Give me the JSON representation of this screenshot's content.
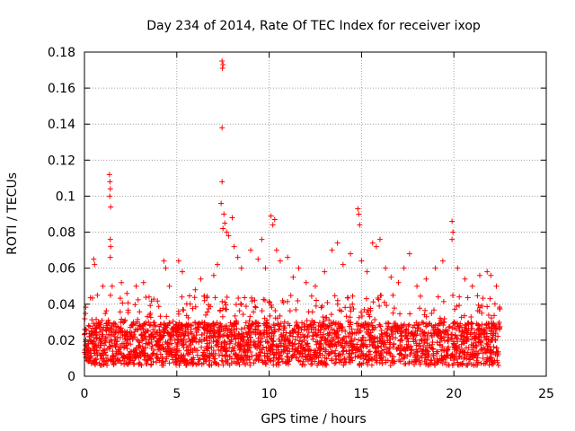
{
  "chart_data": {
    "type": "scatter",
    "title": "Day 234 of 2014, Rate Of TEC Index for receiver ixop",
    "xlabel": "GPS time / hours",
    "ylabel": "ROTI / TECUs",
    "xlim": [
      0,
      25
    ],
    "ylim": [
      0,
      0.18
    ],
    "xticks": [
      0,
      5,
      10,
      15,
      20,
      25
    ],
    "yticks": [
      0,
      0.02,
      0.04,
      0.06,
      0.08,
      0.1,
      0.12,
      0.14,
      0.16,
      0.18
    ],
    "xtick_labels": [
      "0",
      "5",
      "10",
      "15",
      "20",
      "25"
    ],
    "ytick_labels": [
      "0",
      "0.02",
      "0.04",
      "0.06",
      "0.08",
      "0.1",
      "0.12",
      "0.14",
      "0.16",
      "0.18"
    ],
    "grid": true,
    "marker": "+",
    "color": "#ff0000",
    "series": [
      {
        "name": "ROTI",
        "points": [
          [
            0.5,
            0.065
          ],
          [
            0.55,
            0.062
          ],
          [
            0.7,
            0.045
          ],
          [
            1.0,
            0.05
          ],
          [
            1.35,
            0.112
          ],
          [
            1.38,
            0.108
          ],
          [
            1.4,
            0.104
          ],
          [
            1.37,
            0.1
          ],
          [
            1.42,
            0.094
          ],
          [
            1.4,
            0.076
          ],
          [
            1.42,
            0.072
          ],
          [
            1.4,
            0.066
          ],
          [
            1.5,
            0.05
          ],
          [
            2.0,
            0.052
          ],
          [
            2.3,
            0.046
          ],
          [
            2.8,
            0.05
          ],
          [
            3.2,
            0.052
          ],
          [
            3.5,
            0.044
          ],
          [
            4.3,
            0.064
          ],
          [
            4.4,
            0.06
          ],
          [
            4.6,
            0.05
          ],
          [
            5.1,
            0.064
          ],
          [
            5.3,
            0.058
          ],
          [
            6.0,
            0.048
          ],
          [
            6.3,
            0.054
          ],
          [
            6.5,
            0.042
          ],
          [
            7.0,
            0.056
          ],
          [
            7.2,
            0.062
          ],
          [
            7.45,
            0.175
          ],
          [
            7.5,
            0.173
          ],
          [
            7.47,
            0.171
          ],
          [
            7.45,
            0.138
          ],
          [
            7.45,
            0.108
          ],
          [
            7.4,
            0.096
          ],
          [
            7.55,
            0.09
          ],
          [
            7.6,
            0.085
          ],
          [
            7.5,
            0.082
          ],
          [
            7.7,
            0.08
          ],
          [
            7.8,
            0.078
          ],
          [
            8.0,
            0.088
          ],
          [
            8.1,
            0.072
          ],
          [
            8.3,
            0.066
          ],
          [
            8.5,
            0.06
          ],
          [
            9.0,
            0.07
          ],
          [
            9.4,
            0.065
          ],
          [
            9.6,
            0.076
          ],
          [
            9.8,
            0.06
          ],
          [
            10.1,
            0.089
          ],
          [
            10.3,
            0.087
          ],
          [
            10.2,
            0.084
          ],
          [
            10.4,
            0.07
          ],
          [
            10.6,
            0.064
          ],
          [
            11.0,
            0.066
          ],
          [
            11.3,
            0.055
          ],
          [
            11.6,
            0.06
          ],
          [
            12.0,
            0.052
          ],
          [
            12.5,
            0.05
          ],
          [
            13.0,
            0.058
          ],
          [
            13.4,
            0.07
          ],
          [
            13.7,
            0.074
          ],
          [
            14.0,
            0.062
          ],
          [
            14.4,
            0.068
          ],
          [
            14.8,
            0.093
          ],
          [
            14.85,
            0.09
          ],
          [
            14.9,
            0.084
          ],
          [
            15.0,
            0.064
          ],
          [
            15.3,
            0.058
          ],
          [
            15.6,
            0.074
          ],
          [
            15.8,
            0.072
          ],
          [
            16.0,
            0.076
          ],
          [
            16.3,
            0.06
          ],
          [
            16.6,
            0.055
          ],
          [
            17.0,
            0.052
          ],
          [
            17.3,
            0.06
          ],
          [
            17.6,
            0.068
          ],
          [
            18.0,
            0.05
          ],
          [
            18.5,
            0.054
          ],
          [
            19.0,
            0.06
          ],
          [
            19.4,
            0.064
          ],
          [
            19.9,
            0.086
          ],
          [
            19.95,
            0.08
          ],
          [
            19.9,
            0.076
          ],
          [
            20.2,
            0.06
          ],
          [
            20.6,
            0.054
          ],
          [
            21.0,
            0.05
          ],
          [
            21.4,
            0.056
          ],
          [
            21.8,
            0.058
          ],
          [
            22.0,
            0.056
          ],
          [
            22.3,
            0.05
          ]
        ],
        "baseline_band": {
          "x_range": [
            0,
            22.5
          ],
          "typical_min": 0.006,
          "typical_max": 0.03,
          "burst_max": 0.045
        }
      }
    ]
  }
}
